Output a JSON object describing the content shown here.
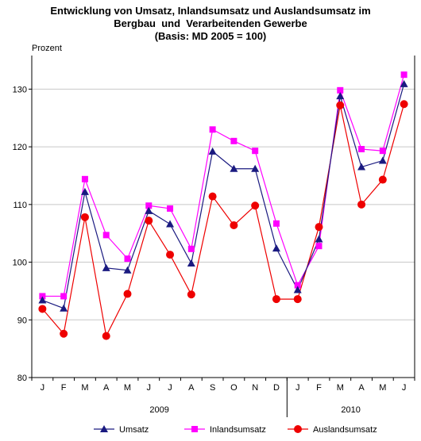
{
  "chart_data": {
    "type": "line",
    "title_lines": [
      "Entwicklung von Umsatz, Inlandsumsatz und Auslandsumsatz im",
      "Bergbau  und  Verarbeitenden Gewerbe",
      "(Basis: MD 2005 = 100)"
    ],
    "ylabel": "Prozent",
    "ylim": [
      80,
      135
    ],
    "yticks": [
      80,
      90,
      100,
      110,
      120,
      130
    ],
    "grid": "horizontal",
    "legend_position": "bottom",
    "categories": [
      "J",
      "F",
      "M",
      "A",
      "M",
      "J",
      "J",
      "A",
      "S",
      "O",
      "N",
      "D",
      "J",
      "F",
      "M",
      "A",
      "M",
      "J"
    ],
    "year_groups": [
      {
        "label": "2009",
        "start": 0,
        "end": 11
      },
      {
        "label": "2010",
        "start": 12,
        "end": 17
      }
    ],
    "series": [
      {
        "name": "Umsatz",
        "color": "#1a1a80",
        "marker": "triangle",
        "values": [
          93.4,
          92.0,
          112.2,
          99.0,
          98.6,
          108.9,
          106.6,
          99.8,
          119.2,
          116.2,
          116.2,
          102.4,
          95.2,
          104.0,
          128.8,
          116.5,
          117.6,
          130.9
        ]
      },
      {
        "name": "Inlandsumsatz",
        "color": "#ff00ff",
        "marker": "square",
        "values": [
          94.1,
          94.1,
          114.4,
          104.7,
          100.6,
          109.8,
          109.3,
          102.3,
          123.0,
          121.0,
          119.3,
          106.7,
          96.0,
          102.8,
          129.8,
          119.6,
          119.3,
          132.5
        ]
      },
      {
        "name": "Auslandsumsatz",
        "color": "#ee0000",
        "marker": "circle",
        "values": [
          91.9,
          87.6,
          107.8,
          87.2,
          94.5,
          107.2,
          101.3,
          94.4,
          111.4,
          106.4,
          109.8,
          93.6,
          93.6,
          106.1,
          127.2,
          110.0,
          114.3,
          127.4
        ]
      }
    ]
  }
}
